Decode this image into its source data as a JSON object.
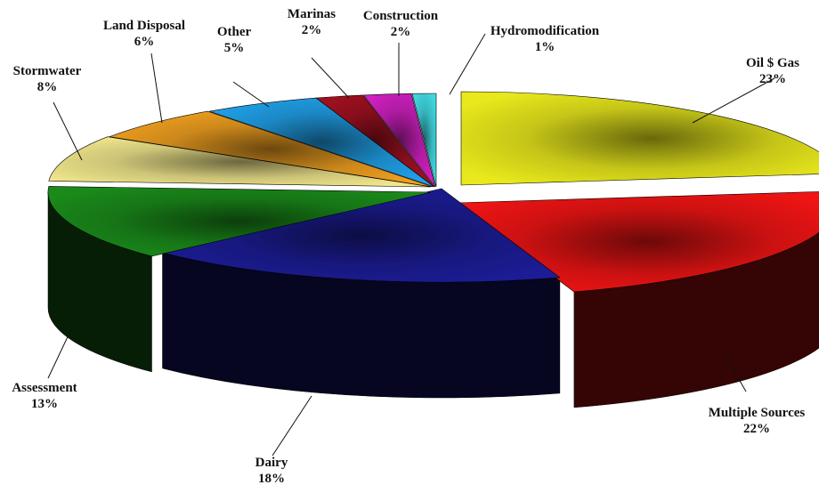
{
  "chart_data": {
    "type": "pie",
    "style": "3d-exploded-disc",
    "start": "Oil $ Gas",
    "direction": "clockwise",
    "slices": [
      {
        "label": "Oil $ Gas",
        "percent_text": "23%",
        "value": 23,
        "color": "#e8e81c"
      },
      {
        "label": "Multiple Sources",
        "percent_text": "22%",
        "value": 22,
        "color": "#f01414"
      },
      {
        "label": "Dairy",
        "percent_text": "18%",
        "value": 18,
        "color": "#1c1c96"
      },
      {
        "label": "Assessment",
        "percent_text": "13%",
        "value": 13,
        "color": "#1a8a1a"
      },
      {
        "label": "Stormwater",
        "percent_text": "8%",
        "value": 8,
        "color": "#f0e68c"
      },
      {
        "label": "Land Disposal",
        "percent_text": "6%",
        "value": 6,
        "color": "#f0a020"
      },
      {
        "label": "Other",
        "percent_text": "5%",
        "value": 5,
        "color": "#20a0e8"
      },
      {
        "label": "Marinas",
        "percent_text": "2%",
        "value": 2,
        "color": "#a01020"
      },
      {
        "label": "Construction",
        "percent_text": "2%",
        "value": 2,
        "color": "#d020c0"
      },
      {
        "label": "Hydromodification",
        "percent_text": "1%",
        "value": 1,
        "color": "#40d8e0"
      }
    ]
  }
}
